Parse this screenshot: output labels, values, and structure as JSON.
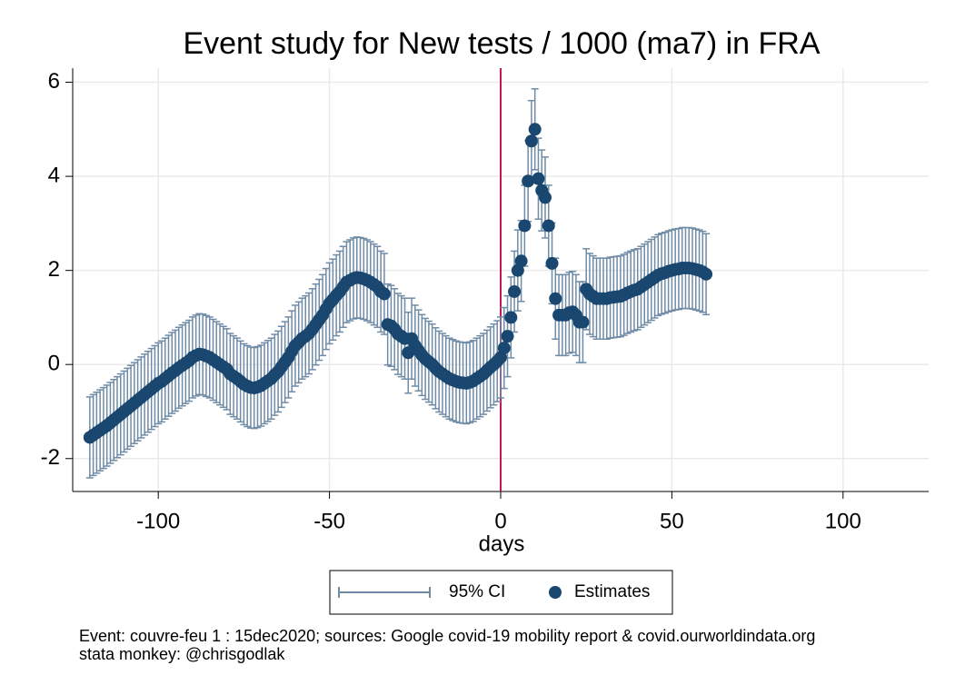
{
  "chart_data": {
    "type": "event-study",
    "title": "Event study for New tests / 1000 (ma7) in FRA",
    "x_label": "days",
    "x": [
      -120,
      -119,
      -118,
      -117,
      -116,
      -115,
      -114,
      -113,
      -112,
      -111,
      -110,
      -109,
      -108,
      -107,
      -106,
      -105,
      -104,
      -103,
      -102,
      -101,
      -100,
      -99,
      -98,
      -97,
      -96,
      -95,
      -94,
      -93,
      -92,
      -91,
      -90,
      -89,
      -88,
      -87,
      -86,
      -85,
      -84,
      -83,
      -82,
      -81,
      -80,
      -79,
      -78,
      -77,
      -76,
      -75,
      -74,
      -73,
      -72,
      -71,
      -70,
      -69,
      -68,
      -67,
      -66,
      -65,
      -64,
      -63,
      -62,
      -61,
      -60,
      -59,
      -58,
      -57,
      -56,
      -55,
      -54,
      -53,
      -52,
      -51,
      -50,
      -49,
      -48,
      -47,
      -46,
      -45,
      -44,
      -43,
      -42,
      -41,
      -40,
      -39,
      -38,
      -37,
      -36,
      -35,
      -34,
      -33,
      -32,
      -31,
      -30,
      -29,
      -28,
      -27,
      -26,
      -25,
      -24,
      -23,
      -22,
      -21,
      -20,
      -19,
      -18,
      -17,
      -16,
      -15,
      -14,
      -13,
      -12,
      -11,
      -10,
      -9,
      -8,
      -7,
      -6,
      -5,
      -4,
      -3,
      -2,
      -1,
      0,
      1,
      2,
      3,
      4,
      5,
      6,
      7,
      8,
      9,
      10,
      11,
      12,
      13,
      14,
      15,
      16,
      17,
      18,
      19,
      20,
      21,
      22,
      23,
      24,
      25,
      26,
      27,
      28,
      29,
      30,
      31,
      32,
      33,
      34,
      35,
      36,
      37,
      38,
      39,
      40,
      41,
      42,
      43,
      44,
      45,
      46,
      47,
      48,
      49,
      50,
      51,
      52,
      53,
      54,
      55,
      56,
      57,
      58,
      59,
      60
    ],
    "series": [
      {
        "name": "Estimates",
        "color": "#1a476f",
        "values": [
          -1.55,
          -1.5,
          -1.45,
          -1.4,
          -1.35,
          -1.3,
          -1.24,
          -1.18,
          -1.12,
          -1.06,
          -1.0,
          -0.94,
          -0.88,
          -0.82,
          -0.76,
          -0.7,
          -0.64,
          -0.58,
          -0.52,
          -0.46,
          -0.4,
          -0.36,
          -0.3,
          -0.24,
          -0.18,
          -0.13,
          -0.07,
          -0.02,
          0.03,
          0.08,
          0.15,
          0.19,
          0.22,
          0.21,
          0.18,
          0.15,
          0.1,
          0.05,
          0.0,
          -0.05,
          -0.1,
          -0.2,
          -0.25,
          -0.3,
          -0.36,
          -0.42,
          -0.46,
          -0.49,
          -0.5,
          -0.48,
          -0.45,
          -0.4,
          -0.35,
          -0.3,
          -0.22,
          -0.15,
          -0.05,
          0.05,
          0.15,
          0.28,
          0.4,
          0.47,
          0.55,
          0.6,
          0.66,
          0.75,
          0.85,
          0.95,
          1.05,
          1.18,
          1.3,
          1.38,
          1.47,
          1.55,
          1.65,
          1.75,
          1.79,
          1.83,
          1.85,
          1.84,
          1.82,
          1.79,
          1.75,
          1.7,
          1.65,
          1.55,
          1.5,
          0.85,
          0.82,
          0.75,
          0.65,
          0.6,
          0.55,
          0.25,
          0.55,
          0.4,
          0.3,
          0.2,
          0.12,
          0.06,
          0.0,
          -0.08,
          -0.15,
          -0.2,
          -0.25,
          -0.3,
          -0.33,
          -0.36,
          -0.38,
          -0.39,
          -0.4,
          -0.38,
          -0.35,
          -0.3,
          -0.25,
          -0.2,
          -0.13,
          -0.06,
          0.0,
          0.07,
          0.15,
          0.35,
          0.6,
          1.0,
          1.55,
          2.0,
          2.2,
          2.95,
          3.9,
          4.75,
          5.0,
          3.95,
          3.7,
          3.55,
          2.95,
          2.15,
          1.4,
          1.05,
          1.05,
          1.05,
          1.1,
          1.12,
          1.05,
          0.9,
          0.9,
          1.6,
          1.5,
          1.45,
          1.4,
          1.4,
          1.4,
          1.4,
          1.42,
          1.43,
          1.44,
          1.45,
          1.48,
          1.52,
          1.55,
          1.58,
          1.6,
          1.65,
          1.7,
          1.75,
          1.8,
          1.85,
          1.9,
          1.93,
          1.95,
          1.98,
          2.0,
          2.02,
          2.03,
          2.05,
          2.05,
          2.05,
          2.04,
          2.02,
          2.0,
          1.97,
          1.92
        ]
      }
    ],
    "ci": {
      "name": "95% CI",
      "color": "#6f8ba6",
      "errors": [
        0.86,
        0.86,
        0.86,
        0.86,
        0.86,
        0.86,
        0.86,
        0.86,
        0.86,
        0.86,
        0.86,
        0.86,
        0.86,
        0.86,
        0.86,
        0.86,
        0.86,
        0.86,
        0.86,
        0.86,
        0.86,
        0.86,
        0.86,
        0.86,
        0.86,
        0.86,
        0.86,
        0.86,
        0.86,
        0.86,
        0.86,
        0.86,
        0.86,
        0.86,
        0.86,
        0.86,
        0.86,
        0.86,
        0.86,
        0.86,
        0.86,
        0.86,
        0.86,
        0.86,
        0.86,
        0.86,
        0.86,
        0.86,
        0.86,
        0.86,
        0.86,
        0.86,
        0.86,
        0.86,
        0.86,
        0.86,
        0.86,
        0.86,
        0.86,
        0.86,
        0.86,
        0.86,
        0.86,
        0.86,
        0.86,
        0.86,
        0.86,
        0.86,
        0.86,
        0.86,
        0.86,
        0.86,
        0.86,
        0.86,
        0.86,
        0.86,
        0.86,
        0.86,
        0.86,
        0.86,
        0.86,
        0.86,
        0.86,
        0.86,
        0.86,
        0.86,
        0.86,
        0.86,
        0.86,
        0.86,
        0.86,
        0.86,
        0.86,
        0.86,
        0.86,
        0.86,
        0.86,
        0.86,
        0.86,
        0.86,
        0.86,
        0.86,
        0.86,
        0.86,
        0.86,
        0.86,
        0.86,
        0.86,
        0.86,
        0.86,
        0.86,
        0.86,
        0.86,
        0.86,
        0.86,
        0.86,
        0.86,
        0.86,
        0.86,
        0.86,
        0.86,
        0.86,
        0.86,
        0.86,
        0.86,
        0.86,
        0.86,
        0.86,
        0.86,
        0.86,
        0.86,
        0.86,
        0.86,
        0.86,
        0.86,
        0.86,
        0.86,
        0.86,
        0.86,
        0.86,
        0.86,
        0.86,
        0.86,
        0.86,
        0.86,
        0.86,
        0.86,
        0.86,
        0.86,
        0.86,
        0.86,
        0.86,
        0.86,
        0.86,
        0.86,
        0.86,
        0.86,
        0.86,
        0.86,
        0.86,
        0.86,
        0.86,
        0.86,
        0.86,
        0.86,
        0.86,
        0.86,
        0.86,
        0.86,
        0.86,
        0.86,
        0.86,
        0.86,
        0.86,
        0.86,
        0.86,
        0.86,
        0.86,
        0.86,
        0.86,
        0.86,
        0.86,
        0.86
      ]
    },
    "event_x": 0,
    "event_color": "#c2185b",
    "xlim": [
      -125,
      125
    ],
    "ylim": [
      -2.7,
      6.3
    ],
    "xticks": [
      -100,
      -50,
      0,
      50,
      100
    ],
    "yticks": [
      -2,
      0,
      2,
      4,
      6
    ],
    "grid": true,
    "notes": [
      "Event: couvre-feu 1 : 15dec2020; sources: Google covid-19 mobility report & covid.ourworldindata.org",
      "stata monkey: @chrisgodlak"
    ]
  }
}
